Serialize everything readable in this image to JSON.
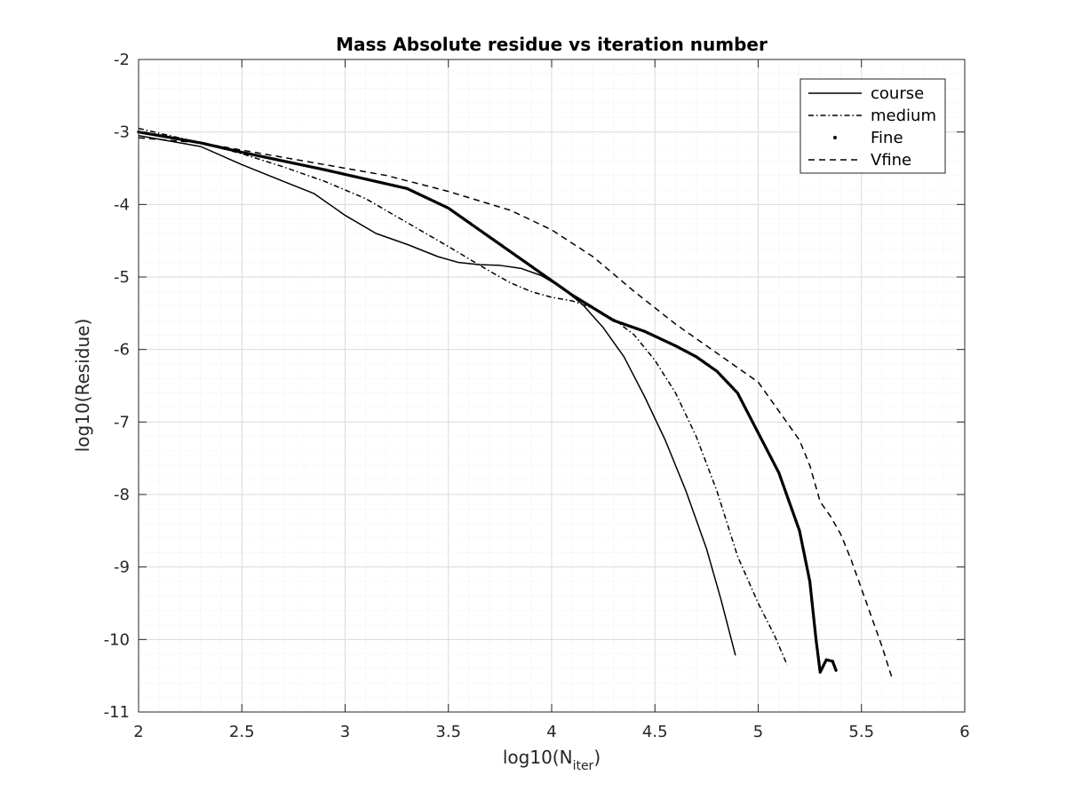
{
  "chart_data": {
    "type": "line",
    "title": "Mass Absolute residue vs iteration number",
    "xlabel_main": "log10(N",
    "xlabel_sub": "iter",
    "xlabel_close": ")",
    "ylabel": "log10(Residue)",
    "xlim": [
      2,
      6
    ],
    "ylim": [
      -11,
      -2
    ],
    "xticks": [
      2,
      2.5,
      3,
      3.5,
      4,
      4.5,
      5,
      5.5,
      6
    ],
    "xtick_labels": [
      "2",
      "2.5",
      "3",
      "3.5",
      "4",
      "4.5",
      "5",
      "5.5",
      "6"
    ],
    "yticks": [
      -2,
      -3,
      -4,
      -5,
      -6,
      -7,
      -8,
      -9,
      -10,
      -11
    ],
    "ytick_labels": [
      "-2",
      "-3",
      "-4",
      "-5",
      "-6",
      "-7",
      "-8",
      "-9",
      "-10",
      "-11"
    ],
    "grid": "major and minor",
    "legend_position": "top-right",
    "series": [
      {
        "name": "course",
        "style": "solid",
        "x": [
          2.0,
          2.3,
          2.5,
          2.7,
          2.85,
          3.0,
          3.15,
          3.3,
          3.45,
          3.55,
          3.65,
          3.75,
          3.85,
          3.95,
          4.05,
          4.15,
          4.25,
          4.35,
          4.45,
          4.55,
          4.65,
          4.75,
          4.82,
          4.89
        ],
        "y": [
          -3.05,
          -3.2,
          -3.45,
          -3.68,
          -3.85,
          -4.15,
          -4.4,
          -4.55,
          -4.72,
          -4.8,
          -4.83,
          -4.84,
          -4.88,
          -4.98,
          -5.15,
          -5.38,
          -5.7,
          -6.1,
          -6.65,
          -7.25,
          -7.95,
          -8.75,
          -9.45,
          -10.22
        ]
      },
      {
        "name": "medium",
        "style": "dashdot",
        "x": [
          2.0,
          2.3,
          2.5,
          2.7,
          2.9,
          3.1,
          3.3,
          3.5,
          3.6,
          3.7,
          3.8,
          3.9,
          4.0,
          4.1,
          4.2,
          4.3,
          4.4,
          4.5,
          4.6,
          4.7,
          4.8,
          4.9,
          5.0,
          5.08,
          5.14
        ],
        "y": [
          -2.95,
          -3.15,
          -3.3,
          -3.48,
          -3.68,
          -3.92,
          -4.25,
          -4.58,
          -4.75,
          -4.92,
          -5.08,
          -5.2,
          -5.28,
          -5.33,
          -5.43,
          -5.58,
          -5.8,
          -6.15,
          -6.6,
          -7.2,
          -7.95,
          -8.85,
          -9.5,
          -9.95,
          -10.35
        ]
      },
      {
        "name": "Fine",
        "style": "dots",
        "x": [
          2.0,
          2.3,
          2.5,
          2.7,
          2.9,
          3.1,
          3.3,
          3.5,
          3.7,
          3.9,
          4.1,
          4.3,
          4.45,
          4.6,
          4.7,
          4.8,
          4.9,
          5.0,
          5.1,
          5.2,
          5.25,
          5.28,
          5.3,
          5.33,
          5.36,
          5.38
        ],
        "y": [
          -3.0,
          -3.15,
          -3.28,
          -3.4,
          -3.52,
          -3.65,
          -3.78,
          -4.05,
          -4.45,
          -4.85,
          -5.25,
          -5.6,
          -5.75,
          -5.95,
          -6.1,
          -6.3,
          -6.6,
          -7.15,
          -7.7,
          -8.5,
          -9.2,
          -10.0,
          -10.45,
          -10.28,
          -10.3,
          -10.45
        ]
      },
      {
        "name": "Vfine",
        "style": "dashed",
        "x": [
          2.0,
          2.3,
          2.6,
          2.9,
          3.2,
          3.5,
          3.8,
          4.0,
          4.2,
          4.4,
          4.6,
          4.8,
          5.0,
          5.1,
          5.2,
          5.25,
          5.3,
          5.35,
          5.4,
          5.45,
          5.5,
          5.55,
          5.6,
          5.65
        ],
        "y": [
          -3.08,
          -3.15,
          -3.3,
          -3.45,
          -3.6,
          -3.82,
          -4.08,
          -4.35,
          -4.72,
          -5.2,
          -5.65,
          -6.05,
          -6.45,
          -6.85,
          -7.25,
          -7.6,
          -8.1,
          -8.3,
          -8.55,
          -8.9,
          -9.3,
          -9.7,
          -10.1,
          -10.55
        ]
      }
    ]
  }
}
